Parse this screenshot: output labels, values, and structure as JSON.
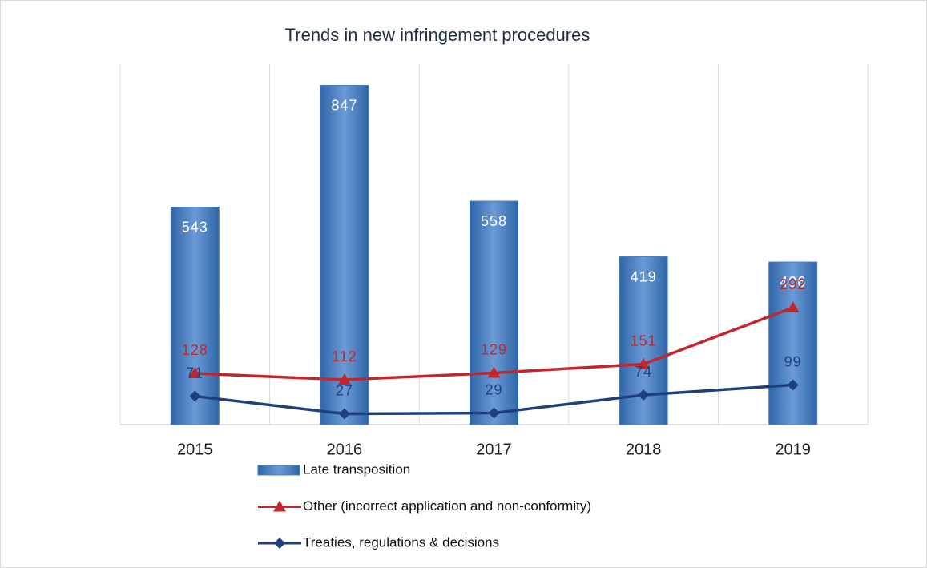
{
  "chart_data": {
    "type": "bar-line",
    "title": "Trends in new infringement procedures",
    "categories": [
      "2015",
      "2016",
      "2017",
      "2018",
      "2019"
    ],
    "series": [
      {
        "name": "Late transposition",
        "type": "bar",
        "color": "#4a7fc1",
        "values": [
          543,
          847,
          558,
          419,
          406
        ]
      },
      {
        "name": "Other (incorrect application and non-conformity)",
        "type": "line",
        "marker": "triangle",
        "color": "#c0282d",
        "values": [
          128,
          112,
          129,
          151,
          292
        ]
      },
      {
        "name": "Treaties, regulations & decisions",
        "type": "line",
        "marker": "diamond",
        "color": "#203f7d",
        "values": [
          71,
          27,
          29,
          74,
          99
        ]
      }
    ],
    "ylim": [
      0,
      900
    ],
    "grid": true,
    "legend": "bottom"
  }
}
